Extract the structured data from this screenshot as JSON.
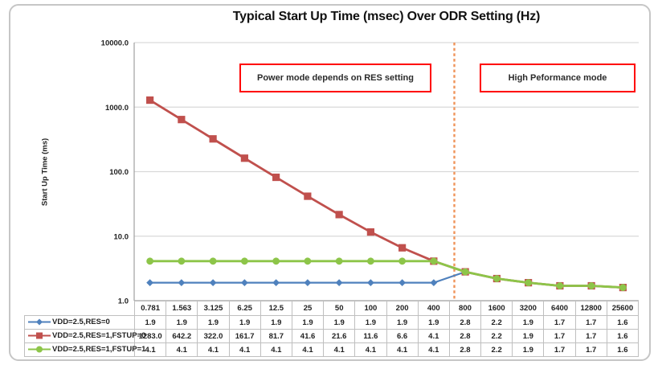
{
  "frame": {
    "title": "Typical Start Up Time (msec) Over ODR Setting (Hz)"
  },
  "chart_data": {
    "type": "line",
    "title": "Typical Start Up Time (msec) Over ODR Setting (Hz)",
    "xlabel": "",
    "ylabel": "Start Up Time (ms)",
    "y_scale": "log",
    "ylim": [
      1,
      10000
    ],
    "grid": true,
    "legend_position": "table-left",
    "y_ticks": [
      {
        "value": 10000,
        "label": "10000.0"
      },
      {
        "value": 1000,
        "label": "1000.0"
      },
      {
        "value": 100,
        "label": "100.0"
      },
      {
        "value": 10,
        "label": "10.0"
      },
      {
        "value": 1,
        "label": "1.0"
      }
    ],
    "categories": [
      "0.781",
      "1.563",
      "3.125",
      "6.25",
      "12.5",
      "25",
      "50",
      "100",
      "200",
      "400",
      "800",
      "1600",
      "3200",
      "6400",
      "12800",
      "25600"
    ],
    "series": [
      {
        "name": "VDD=2.5,RES=0",
        "color": "#4F81BD",
        "marker": "diamond",
        "values": [
          1.9,
          1.9,
          1.9,
          1.9,
          1.9,
          1.9,
          1.9,
          1.9,
          1.9,
          1.9,
          2.8,
          2.2,
          1.9,
          1.7,
          1.7,
          1.6
        ]
      },
      {
        "name": "VDD=2.5,RES=1,FSTUP=0",
        "color": "#C0504D",
        "marker": "square",
        "values": [
          1283.0,
          642.2,
          322.0,
          161.7,
          81.7,
          41.6,
          21.6,
          11.6,
          6.6,
          4.1,
          2.8,
          2.2,
          1.9,
          1.7,
          1.7,
          1.6
        ]
      },
      {
        "name": "VDD=2.5,RES=1,FSTUP=1",
        "color": "#8DC549",
        "marker": "circle",
        "values": [
          4.1,
          4.1,
          4.1,
          4.1,
          4.1,
          4.1,
          4.1,
          4.1,
          4.1,
          4.1,
          2.8,
          2.2,
          1.9,
          1.7,
          1.7,
          1.6
        ]
      }
    ],
    "divider": {
      "style": "dashed",
      "color": "#F0945A",
      "between": [
        "400",
        "800"
      ]
    },
    "annotations": [
      {
        "id": "power",
        "label": "Power mode depends on RES setting",
        "border_color": "#FF0000"
      },
      {
        "id": "perf",
        "label": "High Peformance mode",
        "border_color": "#FF0000"
      }
    ],
    "colors": {
      "gridline": "#D9D9D9",
      "axis": "#A0A0A0",
      "table_border": "#BFBFBF"
    }
  }
}
